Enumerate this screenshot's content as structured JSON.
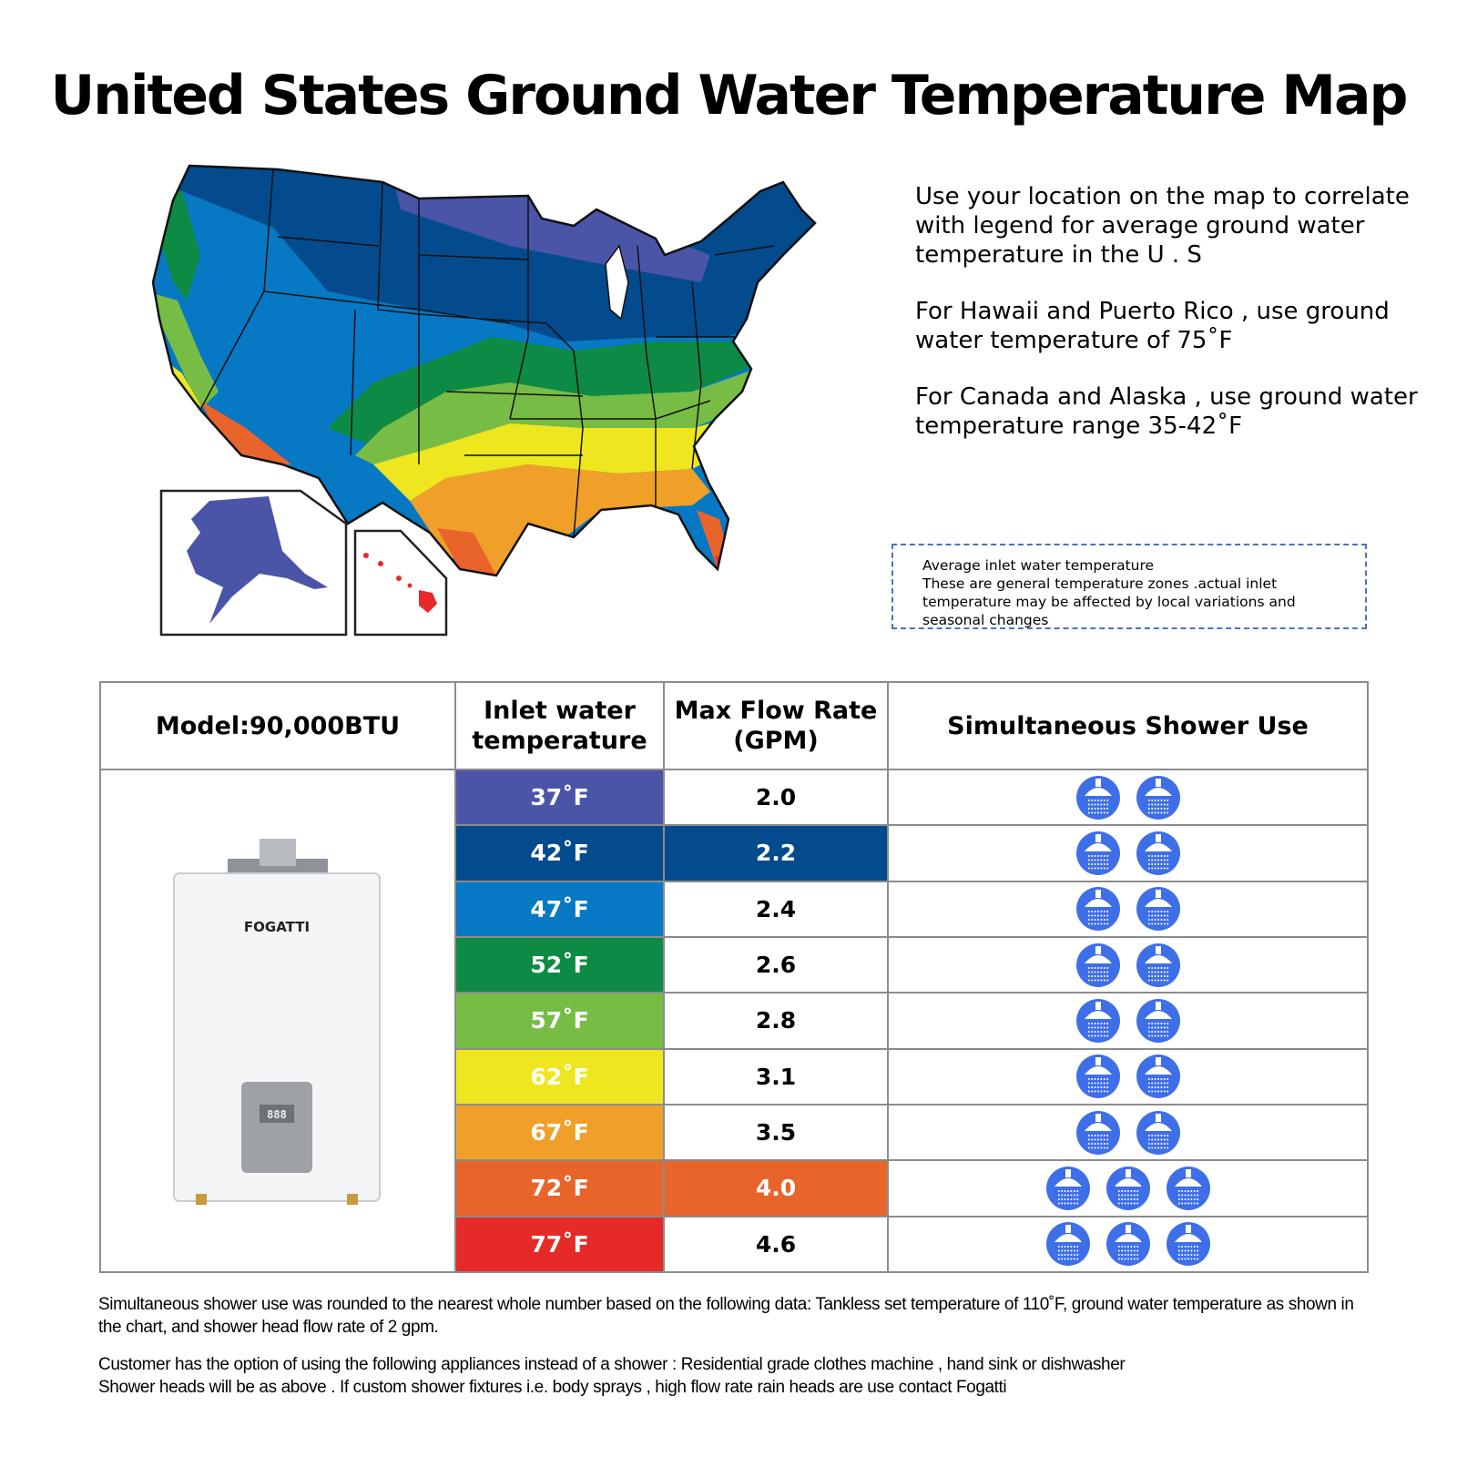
{
  "title": "United States Ground Water Temperature Map",
  "notes": [
    "Use your location on the map to correlate with legend for average ground water temperature in the U . S",
    "For Hawaii and Puerto Rico , use ground water temperature of 75˚F",
    "For Canada and Alaska , use ground water temperature range 35-42˚F"
  ],
  "legend_note": {
    "title": "Average inlet water temperature",
    "body": "These are general temperature zones .actual inlet temperature may be affected by local variations and seasonal changes"
  },
  "table": {
    "headers": {
      "model": "Model:90,000BTU",
      "inlet": "Inlet water temperature",
      "flow": "Max Flow Rate (GPM)",
      "shower": "Simultaneous Shower Use"
    },
    "product_brand": "FOGATTI",
    "product_display": "888",
    "rows": [
      {
        "temp": "37˚F",
        "flow": "2.0",
        "showers": 2,
        "color": "#4b55a8",
        "flow_highlight": false
      },
      {
        "temp": "42˚F",
        "flow": "2.2",
        "showers": 2,
        "color": "#034b8c",
        "flow_highlight": true
      },
      {
        "temp": "47˚F",
        "flow": "2.4",
        "showers": 2,
        "color": "#0678c4",
        "flow_highlight": false
      },
      {
        "temp": "52˚F",
        "flow": "2.6",
        "showers": 2,
        "color": "#0d8b45",
        "flow_highlight": false
      },
      {
        "temp": "57˚F",
        "flow": "2.8",
        "showers": 2,
        "color": "#77bd45",
        "flow_highlight": false
      },
      {
        "temp": "62˚F",
        "flow": "3.1",
        "showers": 2,
        "color": "#eee720",
        "flow_highlight": false
      },
      {
        "temp": "67˚F",
        "flow": "3.5",
        "showers": 2,
        "color": "#f0a028",
        "flow_highlight": false
      },
      {
        "temp": "72˚F",
        "flow": "4.0",
        "showers": 3,
        "color": "#e9642a",
        "flow_highlight": true
      },
      {
        "temp": "77˚F",
        "flow": "4.6",
        "showers": 3,
        "color": "#e62a27",
        "flow_highlight": false
      }
    ]
  },
  "footnotes": [
    "Simultaneous shower use was rounded to the nearest whole number based on the following data: Tankless set temperature of 110˚F, ground water temperature as shown in the chart, and shower head flow rate of 2 gpm.",
    "Customer has the option of using the following appliances instead of a shower : Residential grade clothes machine , hand sink or dishwasher\nShower heads will be as above . If custom shower fixtures i.e. body sprays , high flow rate rain heads are use contact Fogatti"
  ],
  "colors": {
    "z37": "#4b55a8",
    "z42": "#034b8c",
    "z47": "#0678c4",
    "z52": "#0d8b45",
    "z57": "#77bd45",
    "z62": "#eee720",
    "z67": "#f0a028",
    "z72": "#e9642a",
    "z77": "#e62a27",
    "shower_icon": "#3f6fe8",
    "note_border": "#4a72c4"
  }
}
